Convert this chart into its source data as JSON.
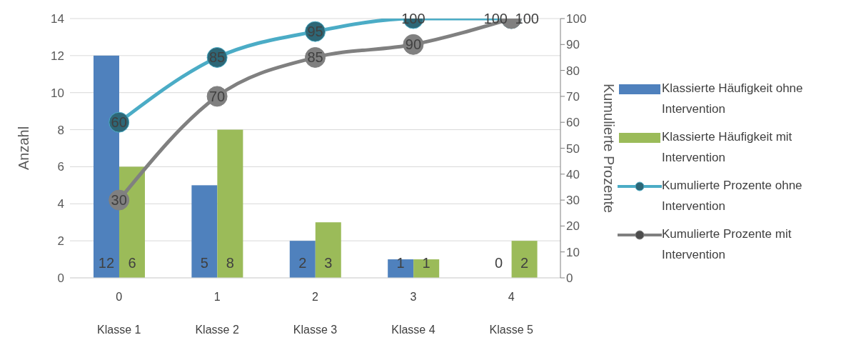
{
  "chart_data": {
    "type": "bar",
    "categories": [
      "0\nKlasse 1",
      "1\nKlasse 2",
      "2\nKlasse 3",
      "3\nKlasse 4",
      "4\nKlasse 5"
    ],
    "ylabel": "Anzahl",
    "y2label": "Kumulierte Prozente",
    "ylim": [
      0,
      14
    ],
    "yticks": [
      0,
      2,
      4,
      6,
      8,
      10,
      12,
      14
    ],
    "y2lim": [
      0,
      100
    ],
    "y2ticks": [
      0,
      10,
      20,
      30,
      40,
      50,
      60,
      70,
      80,
      90,
      100
    ],
    "grid": "y",
    "legend": "right",
    "data_labels": true,
    "series": [
      {
        "name": "Klassierte Häufigkeit ohne Intervention",
        "color": "#4f81bd",
        "values": [
          12,
          5,
          2,
          1,
          0
        ]
      },
      {
        "name": "Klassierte Häufigkeit mit Intervention",
        "color": "#9bbb59",
        "values": [
          6,
          8,
          3,
          1,
          2
        ]
      },
      {
        "name": "Kumulierte Prozente ohne Intervention",
        "type": "line",
        "axis": "y2",
        "marker": "circle",
        "color": "#4bacc6",
        "values": [
          60,
          85,
          95,
          100,
          100
        ]
      },
      {
        "name": "Kumulierte Prozente mit Intervention",
        "type": "line",
        "axis": "y2",
        "marker": "circle",
        "color": "#808080",
        "values": [
          30,
          70,
          85,
          90,
          100
        ]
      }
    ]
  }
}
